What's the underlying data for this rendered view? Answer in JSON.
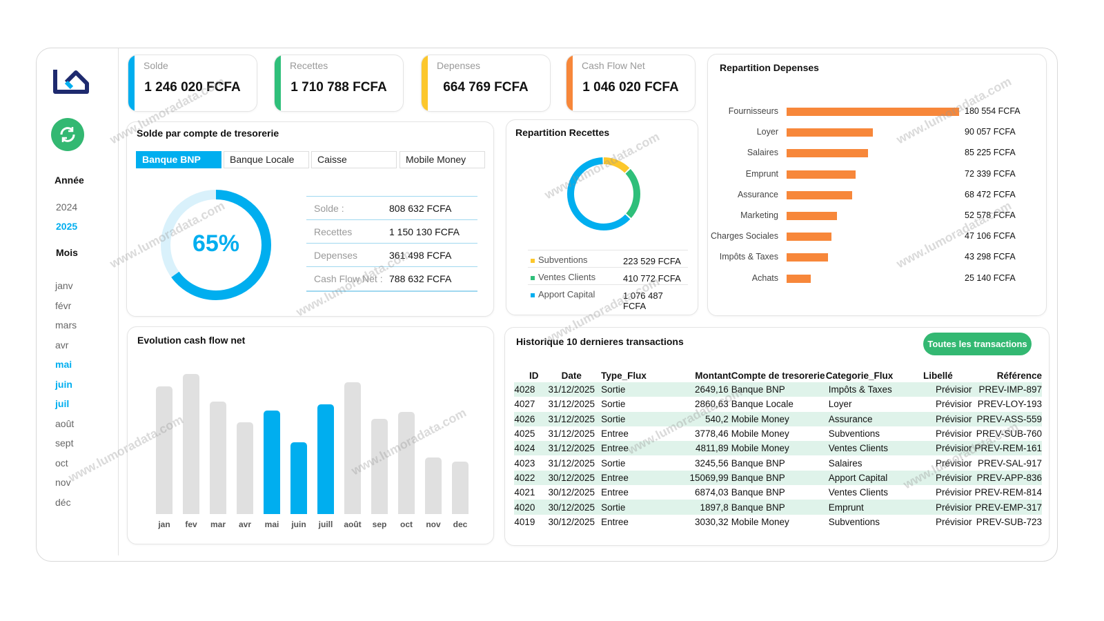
{
  "sidebar": {
    "year_label": "Année",
    "years": [
      "2024",
      "2025"
    ],
    "active_year": "2025",
    "month_label": "Mois",
    "months": [
      "janv",
      "févr",
      "mars",
      "avr",
      "mai",
      "juin",
      "juil",
      "août",
      "sept",
      "oct",
      "nov",
      "déc"
    ],
    "active_months": [
      "mai",
      "juin",
      "juil"
    ],
    "refresh_icon": "refresh-icon",
    "logo": "LD logo"
  },
  "kpis": [
    {
      "label": "Solde",
      "value": "1 246 020 FCFA",
      "color": "#00aeef"
    },
    {
      "label": "Recettes",
      "value": "1 710 788 FCFA",
      "color": "#2fbf7a"
    },
    {
      "label": "Depenses",
      "value": "664 769 FCFA",
      "color": "#fcc72c"
    },
    {
      "label": "Cash Flow Net",
      "value": "1 046 020 FCFA",
      "color": "#f7873a"
    }
  ],
  "solde": {
    "title": "Solde par compte de tresorerie",
    "tabs": [
      "Banque BNP",
      "Banque Locale",
      "Caisse",
      "Mobile Money"
    ],
    "active_tab": "Banque BNP",
    "percent_label": "65%",
    "percent": 65,
    "rows": [
      {
        "k": "Solde :",
        "v": "808 632 FCFA"
      },
      {
        "k": "Recettes",
        "v": "1 150 130 FCFA"
      },
      {
        "k": "Depenses",
        "v": "361 498 FCFA"
      },
      {
        "k": "Cash Flow Net :",
        "v": "788 632 FCFA"
      }
    ]
  },
  "recettes": {
    "title": "Repartition Recettes",
    "items": [
      {
        "name": "Subventions",
        "value": "223 529 FCFA",
        "amount": 223529,
        "color": "#fcc72c"
      },
      {
        "name": "Ventes Clients",
        "value": "410 772 FCFA",
        "amount": 410772,
        "color": "#2fbf7a"
      },
      {
        "name": "Apport Capital",
        "value": "1 076 487 FCFA",
        "amount": 1076487,
        "color": "#00aeef"
      }
    ]
  },
  "chart_data": [
    {
      "type": "bar",
      "title": "Repartition Depenses",
      "orientation": "horizontal",
      "categories": [
        "Fournisseurs",
        "Loyer",
        "Salaires",
        "Emprunt",
        "Assurance",
        "Marketing",
        "Charges Sociales",
        "Impôts & Taxes",
        "Achats"
      ],
      "values": [
        180554,
        90057,
        85225,
        72339,
        68472,
        52578,
        47106,
        43298,
        25140
      ],
      "labels": [
        "180 554 FCFA",
        "90 057 FCFA",
        "85 225 FCFA",
        "72 339 FCFA",
        "68 472 FCFA",
        "52 578 FCFA",
        "47 106 FCFA",
        "43 298 FCFA",
        "25 140 FCFA"
      ],
      "color": "#f7873a",
      "grid": false
    },
    {
      "type": "bar",
      "title": "Evolution cash flow net",
      "categories": [
        "jan",
        "fev",
        "mar",
        "avr",
        "mai",
        "juin",
        "juill",
        "août",
        "sep",
        "oct",
        "nov",
        "dec"
      ],
      "values": [
        185,
        203,
        163,
        133,
        150,
        104,
        159,
        191,
        138,
        148,
        82,
        76
      ],
      "highlighted": [
        "mai",
        "juin",
        "juill"
      ],
      "color": "#00aeef",
      "inactive_color": "#e0e0e0",
      "grid": false
    }
  ],
  "transactions": {
    "title": "Historique 10 dernieres transactions",
    "button": "Toutes les transactions",
    "columns": [
      "ID",
      "Date",
      "Type_Flux",
      "Montant",
      "Compte de tresorerie",
      "Categorie_Flux",
      "Libellé",
      "Référence"
    ],
    "rows": [
      [
        "4028",
        "31/12/2025",
        "Sortie",
        "2649,16",
        "Banque BNP",
        "Impôts & Taxes",
        "Prévisior",
        "PREV-IMP-897"
      ],
      [
        "4027",
        "31/12/2025",
        "Sortie",
        "2860,63",
        "Banque Locale",
        "Loyer",
        "Prévisior",
        "PREV-LOY-193"
      ],
      [
        "4026",
        "31/12/2025",
        "Sortie",
        "540,2",
        "Mobile Money",
        "Assurance",
        "Prévisior",
        "PREV-ASS-559"
      ],
      [
        "4025",
        "31/12/2025",
        "Entree",
        "3778,46",
        "Mobile Money",
        "Subventions",
        "Prévisior",
        "PREV-SUB-760"
      ],
      [
        "4024",
        "31/12/2025",
        "Entree",
        "4811,89",
        "Mobile Money",
        "Ventes Clients",
        "Prévisior",
        "PREV-REM-161"
      ],
      [
        "4023",
        "31/12/2025",
        "Sortie",
        "3245,56",
        "Banque BNP",
        "Salaires",
        "Prévisior",
        "PREV-SAL-917"
      ],
      [
        "4022",
        "30/12/2025",
        "Entree",
        "15069,99",
        "Banque BNP",
        "Apport Capital",
        "Prévisior",
        "PREV-APP-836"
      ],
      [
        "4021",
        "30/12/2025",
        "Entree",
        "6874,03",
        "Banque BNP",
        "Ventes Clients",
        "Prévisior",
        "PREV-REM-814"
      ],
      [
        "4020",
        "30/12/2025",
        "Sortie",
        "1897,8",
        "Banque BNP",
        "Emprunt",
        "Prévisior",
        "PREV-EMP-317"
      ],
      [
        "4019",
        "30/12/2025",
        "Entree",
        "3030,32",
        "Mobile Money",
        "Subventions",
        "Prévisior",
        "PREV-SUB-723"
      ]
    ]
  },
  "watermark": "www.lumoradata.com"
}
